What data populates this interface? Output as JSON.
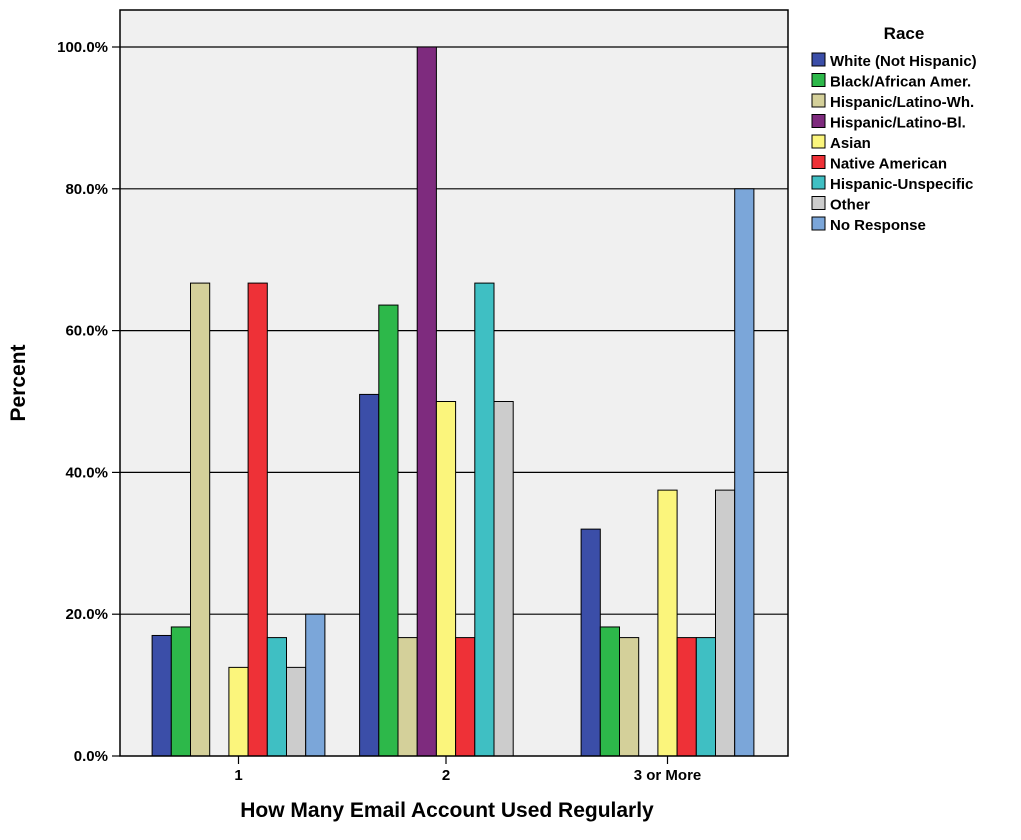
{
  "chart_data": {
    "type": "bar",
    "xlabel": "How Many Email Account Used Regularly",
    "ylabel": "Percent",
    "ylim": [
      0,
      100
    ],
    "yticks": [
      0,
      20,
      40,
      60,
      80,
      100
    ],
    "ytick_labels": [
      "0.0%",
      "20.0%",
      "40.0%",
      "60.0%",
      "80.0%",
      "100.0%"
    ],
    "grid": true,
    "legend_title": "Race",
    "legend_position": "top-right",
    "categories": [
      "1",
      "2",
      "3 or More"
    ],
    "series": [
      {
        "name": "White (Not Hispanic)",
        "color": "#3b4ea8",
        "values": [
          17,
          51,
          32
        ]
      },
      {
        "name": "Black/African Amer.",
        "color": "#2db84a",
        "values": [
          18.2,
          63.6,
          18.2
        ]
      },
      {
        "name": "Hispanic/Latino-Wh.",
        "color": "#d4d09a",
        "values": [
          66.7,
          16.7,
          16.7
        ]
      },
      {
        "name": "Hispanic/Latino-Bl.",
        "color": "#7e2b7e",
        "values": [
          0,
          100,
          0
        ]
      },
      {
        "name": "Asian",
        "color": "#fbf57c",
        "values": [
          12.5,
          50,
          37.5
        ]
      },
      {
        "name": "Native American",
        "color": "#ee3137",
        "values": [
          66.7,
          16.7,
          16.7
        ]
      },
      {
        "name": "Hispanic-Unspecific",
        "color": "#3fbfc3",
        "values": [
          16.7,
          66.7,
          16.7
        ]
      },
      {
        "name": "Other",
        "color": "#cccccc",
        "values": [
          12.5,
          50,
          37.5
        ]
      },
      {
        "name": "No Response",
        "color": "#7ba6d9",
        "values": [
          20,
          0,
          80
        ]
      }
    ]
  }
}
